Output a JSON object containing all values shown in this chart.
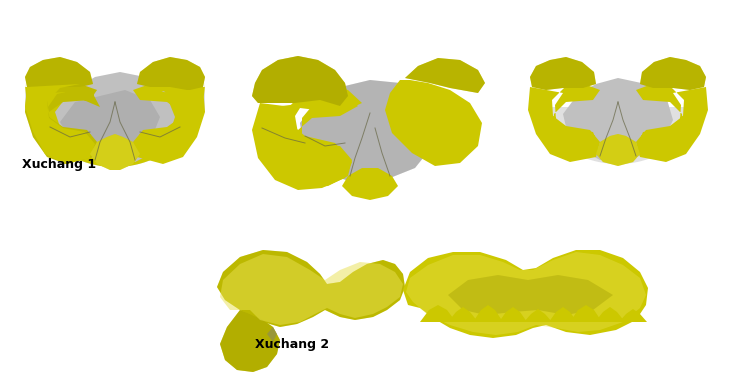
{
  "background_color": "#ffffff",
  "label_xuchang1": "Xuchang 1",
  "label_xuchang2": "Xuchang 2",
  "label_fontsize": 9,
  "label_fontweight": "bold",
  "skull_yellow": "#ccc800",
  "skull_yellow2": "#b8b400",
  "skull_yellow_dark": "#9a9600",
  "skull_yellow_light": "#e8e050",
  "skull_gray": "#c0c0c0",
  "skull_gray_dark": "#888888",
  "skull_gray_light": "#e0e0e0",
  "figure_width": 7.5,
  "figure_height": 3.75,
  "dpi": 100
}
